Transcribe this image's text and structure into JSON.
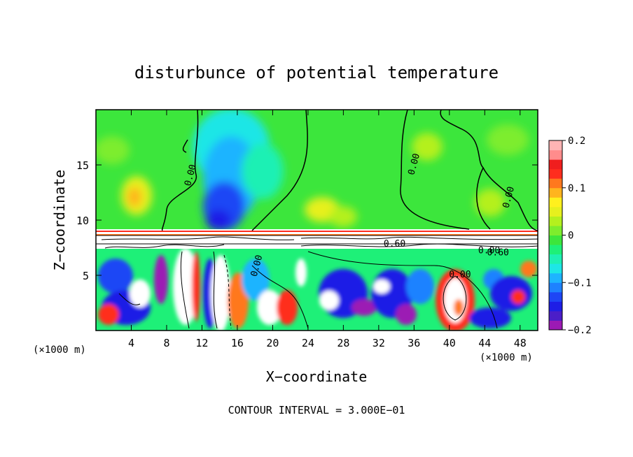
{
  "chart_data": {
    "type": "heatmap",
    "title": "disturbunce of potential temperature",
    "xlabel": "X−coordinate",
    "ylabel": "Z−coordinate",
    "xlim": [
      0,
      50
    ],
    "ylim": [
      0,
      20
    ],
    "x_ticks": [
      4,
      8,
      12,
      16,
      20,
      24,
      28,
      32,
      36,
      40,
      44,
      48
    ],
    "y_ticks": [
      5,
      10,
      15
    ],
    "x_unit_left": "(×1000 m)",
    "x_unit_right": "(×1000 m)",
    "colorbar": {
      "ticks": [
        {
          "value": 0.2,
          "label": "0.2"
        },
        {
          "value": 0.1,
          "label": "0.1"
        },
        {
          "value": 0.0,
          "label": "0"
        },
        {
          "value": -0.1,
          "label": "−0.1"
        },
        {
          "value": -0.2,
          "label": "−0.2"
        }
      ],
      "range": [
        -0.2,
        0.2
      ],
      "colors": [
        "#9c1ab4",
        "#4b1ec8",
        "#1e1ee6",
        "#1e46f5",
        "#1e82ff",
        "#1eb4ff",
        "#1ee6e6",
        "#1ef0b4",
        "#1ef078",
        "#3ce63c",
        "#7ded2d",
        "#b4f01e",
        "#e6f01e",
        "#fff01e",
        "#ffb41e",
        "#ff781e",
        "#ff2d1e",
        "#f01e1e",
        "#ff8c8c",
        "#ffb4b4"
      ]
    },
    "contour_labels": [
      {
        "text": "0.00",
        "x": 11.0,
        "z": 14.0
      },
      {
        "text": "0.00",
        "x": 36.3,
        "z": 15.0
      },
      {
        "text": "0.00",
        "x": 47.0,
        "z": 12.0
      },
      {
        "text": "0.00",
        "x": 18.5,
        "z": 5.8
      },
      {
        "text": "0.00",
        "x": 41.2,
        "z": 4.8
      },
      {
        "text": "0.00",
        "x": 44.5,
        "z": 7.0
      },
      {
        "text": "0.60",
        "x": 33.8,
        "z": 7.6
      },
      {
        "text": "0.60",
        "x": 45.5,
        "z": 6.8
      }
    ],
    "footnote": "CONTOUR INTERVAL = 3.000E−01"
  }
}
